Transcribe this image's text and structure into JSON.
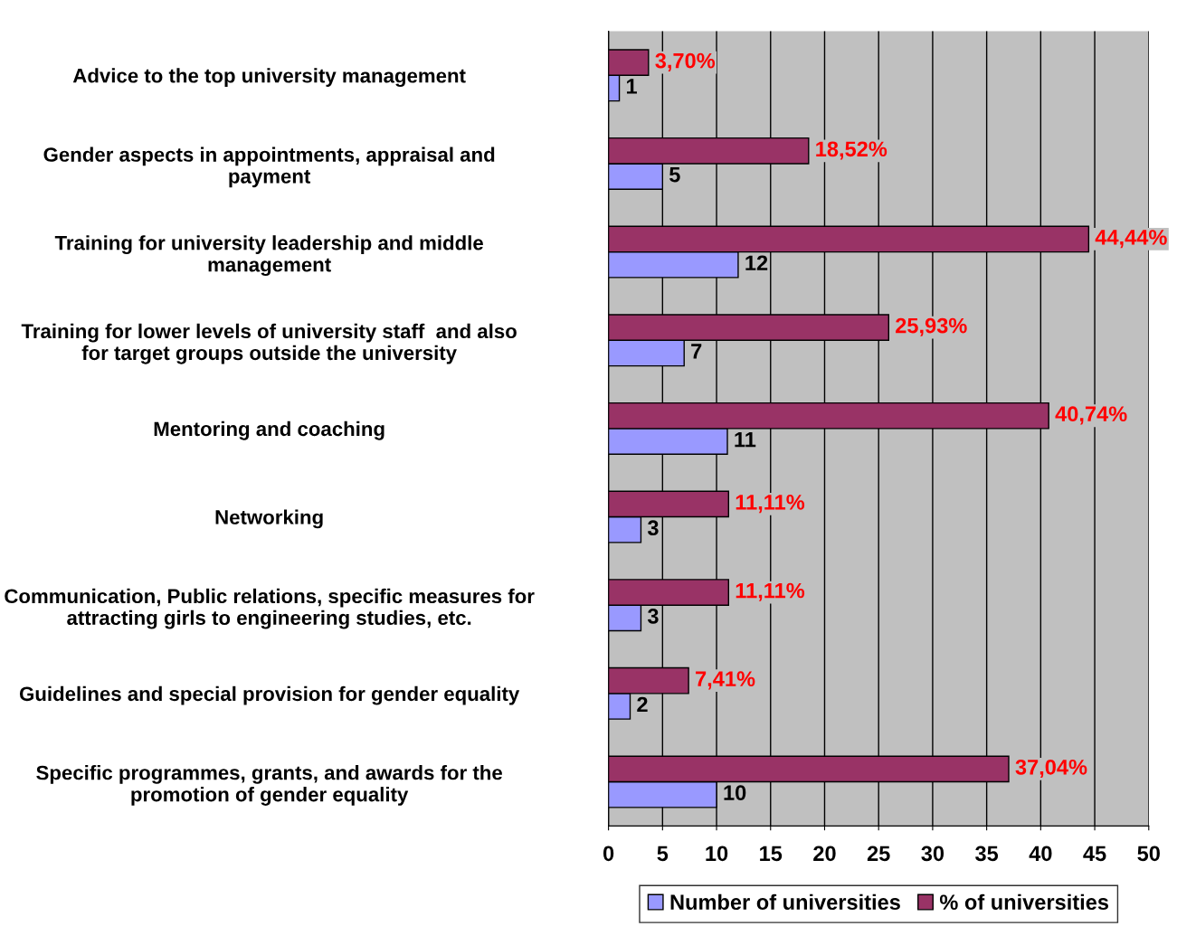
{
  "chart_data": {
    "type": "bar",
    "orientation": "horizontal",
    "categories": [
      "Advice to the top university management",
      "Gender aspects in appointments, appraisal and\npayment",
      "Training for university leadership and middle\nmanagement",
      "Training for lower levels of university staff  and also\nfor target groups outside the university",
      "Mentoring and coaching",
      "Networking",
      "Communication, Public relations, specific measures for\nattracting girls to engineering studies, etc.",
      "Guidelines and special provision for gender equality",
      "Specific programmes, grants, and awards for the\npromotion of gender equality"
    ],
    "series": [
      {
        "name": "Number of universities",
        "color": "#9999ff",
        "values": [
          1,
          5,
          12,
          7,
          11,
          3,
          3,
          2,
          10
        ],
        "value_labels": [
          "1",
          "5",
          "12",
          "7",
          "11",
          "3",
          "3",
          "2",
          "10"
        ]
      },
      {
        "name": "% of universities",
        "color": "#993366",
        "values": [
          3.7,
          18.52,
          44.44,
          25.93,
          40.74,
          11.11,
          11.11,
          7.41,
          37.04
        ],
        "value_labels": [
          "3,70%",
          "18,52%",
          "44,44%",
          "25,93%",
          "40,74%",
          "11,11%",
          "11,11%",
          "7,41%",
          "37,04%"
        ]
      }
    ],
    "xlim": [
      0,
      50
    ],
    "xticks": [
      0,
      5,
      10,
      15,
      20,
      25,
      30,
      35,
      40,
      45,
      50
    ],
    "grid": "x",
    "legend": "bottom"
  }
}
